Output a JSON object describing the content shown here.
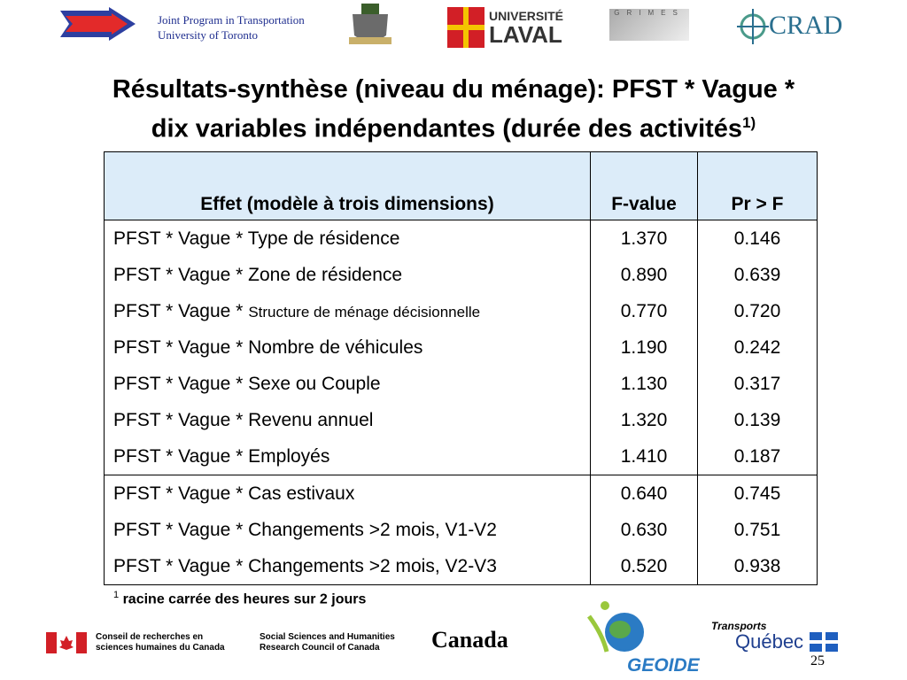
{
  "header": {
    "toronto_line1": "Joint Program in Transportation",
    "toronto_line2": "University of Toronto",
    "laval_line1": "UNIVERSITÉ",
    "laval_line2": "LAVAL",
    "grimes": "GRIMES",
    "crad": "CRAD"
  },
  "title": {
    "line1": "Résultats-synthèse (niveau du ménage): PFST * Vague *",
    "line2": "dix variables indépendantes (durée des activités",
    "sup": "1)"
  },
  "table": {
    "headers": [
      "Effet (modèle à trois dimensions)",
      "F-value",
      "Pr > F"
    ],
    "rows": [
      {
        "effect": "PFST * Vague * Type de résidence",
        "f_value": "1.370",
        "pr_f": "0.146"
      },
      {
        "effect": "PFST * Vague * Zone de résidence",
        "f_value": "0.890",
        "pr_f": "0.639"
      },
      {
        "effect": "PFST * Vague *",
        "effect_detail": "Structure de ménage décisionnelle",
        "f_value": "0.770",
        "pr_f": "0.720"
      },
      {
        "effect": "PFST * Vague * Nombre de véhicules",
        "f_value": "1.190",
        "pr_f": "0.242"
      },
      {
        "effect": "PFST * Vague * Sexe ou Couple",
        "f_value": "1.130",
        "pr_f": "0.317"
      },
      {
        "effect": "PFST * Vague * Revenu annuel",
        "f_value": "1.320",
        "pr_f": "0.139"
      },
      {
        "effect": "PFST * Vague * Employés",
        "f_value": "1.410",
        "pr_f": "0.187"
      },
      {
        "effect": "PFST * Vague * Cas estivaux",
        "f_value": "0.640",
        "pr_f": "0.745"
      },
      {
        "effect": "PFST * Vague * Changements >2 mois, V1-V2",
        "f_value": "0.630",
        "pr_f": "0.751"
      },
      {
        "effect": "PFST * Vague * Changements >2 mois, V2-V3",
        "f_value": "0.520",
        "pr_f": "0.938"
      }
    ]
  },
  "footnote": {
    "mark": "1",
    "text": "racine carrée des heures sur 2 jours"
  },
  "footer": {
    "crsh_line1": "Conseil de recherches en",
    "crsh_line2": "sciences humaines du Canada",
    "sshrc_line1": "Social Sciences and Humanities",
    "sshrc_line2": "Research Council of Canada",
    "canada": "Canada",
    "geoide": "GEOIDE",
    "transports": "Transports",
    "quebec": "Québec"
  },
  "page_number": "25"
}
